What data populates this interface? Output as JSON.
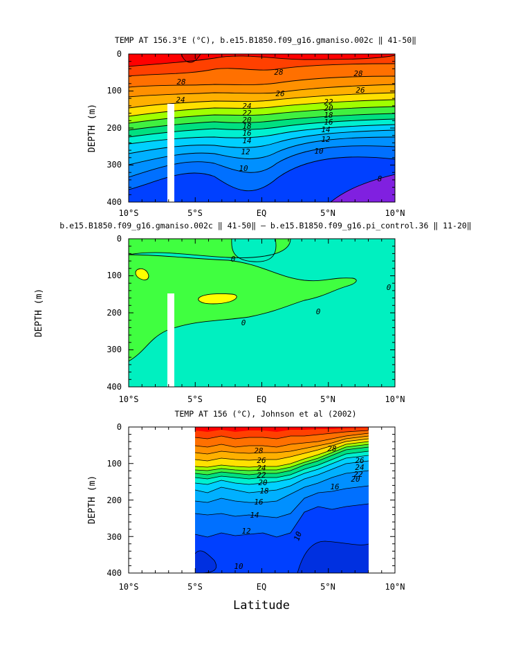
{
  "chart_data": [
    {
      "type": "heatmap",
      "title": "TEMP AT 156.3°E (°C), b.e15.B1850.f09_g16.gmaniso.002c ‖ 41-50‖",
      "ylabel": "DEPTH (m)",
      "xlabel": "",
      "xlim": [
        -10,
        10
      ],
      "ylim": [
        400,
        0
      ],
      "x_ticks": [
        "10°S",
        "5°S",
        "EQ",
        "5°N",
        "10°N"
      ],
      "y_ticks": [
        "0",
        "100",
        "200",
        "300",
        "400"
      ],
      "contour_labels": [
        "28",
        "28",
        "28",
        "26",
        "26",
        "24",
        "24",
        "22",
        "22",
        "20",
        "20",
        "18",
        "18",
        "16",
        "16",
        "14",
        "14",
        "12",
        "12",
        "10",
        "10",
        "8"
      ]
    },
    {
      "type": "heatmap",
      "title": "b.e15.B1850.f09_g16.gmaniso.002c ‖ 41-50‖ – b.e15.B1850.f09_g16.pi_control.36 ‖ 11-20‖",
      "ylabel": "DEPTH (m)",
      "xlabel": "",
      "xlim": [
        -10,
        10
      ],
      "ylim": [
        400,
        0
      ],
      "x_ticks": [
        "10°S",
        "5°S",
        "EQ",
        "5°N",
        "10°N"
      ],
      "y_ticks": [
        "0",
        "100",
        "200",
        "300",
        "400"
      ],
      "contour_labels": [
        "0",
        "0",
        "0",
        "0"
      ]
    },
    {
      "type": "heatmap",
      "title": "TEMP AT 156 (°C), Johnson et al (2002)",
      "ylabel": "DEPTH (m)",
      "xlabel": "Latitude",
      "xlim": [
        -10,
        10
      ],
      "ylim": [
        400,
        0
      ],
      "x_ticks": [
        "10°S",
        "5°S",
        "EQ",
        "5°N",
        "10°N"
      ],
      "y_ticks": [
        "0",
        "100",
        "200",
        "300",
        "400"
      ],
      "contour_labels": [
        "28",
        "28",
        "26",
        "26",
        "24",
        "24",
        "22",
        "22",
        "20",
        "20",
        "18",
        "16",
        "16",
        "14",
        "12",
        "10",
        "10"
      ]
    }
  ],
  "colors": {
    "red": "#ff0000",
    "orange_red": "#ff4000",
    "orange": "#ff7000",
    "orange2": "#ff9000",
    "gold": "#ffb000",
    "yellow": "#ffe000",
    "yellow_green": "#c0ff00",
    "green": "#40ff40",
    "green2": "#00e070",
    "aqua_green": "#00f0c0",
    "cyan": "#00e0ff",
    "sky": "#00b0ff",
    "blue1": "#0080ff",
    "blue2": "#0060e8",
    "blue3": "#0030e0",
    "violet": "#8020e0"
  }
}
